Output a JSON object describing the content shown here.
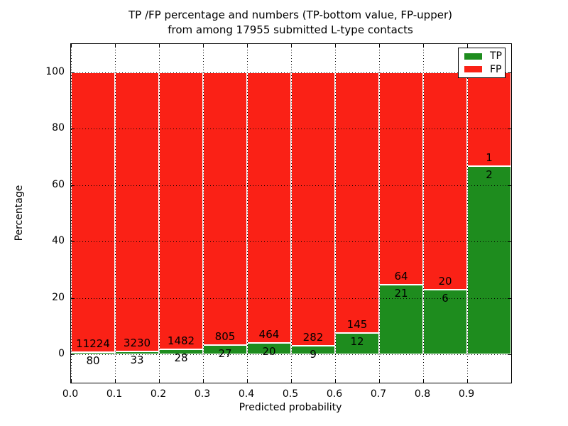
{
  "title": {
    "line1": "TP /FP percentage and numbers (TP-bottom value, FP-upper)",
    "line2": "from among 17955 submitted L-type contacts"
  },
  "chart_data": {
    "type": "bar",
    "stacked": true,
    "normalized_to_percent": true,
    "title": "TP /FP percentage and numbers (TP-bottom value, FP-upper) from among 17955 submitted L-type contacts",
    "xlabel": "Predicted probability",
    "ylabel": "Percentage",
    "xticks": [
      "0.0",
      "0.1",
      "0.2",
      "0.3",
      "0.4",
      "0.5",
      "0.6",
      "0.7",
      "0.8",
      "0.9"
    ],
    "yticks": [
      0,
      20,
      40,
      60,
      80,
      100
    ],
    "xlim": [
      0.0,
      1.0
    ],
    "ylim": [
      -10,
      110
    ],
    "grid": "dotted",
    "legend_position": "upper right",
    "total_contacts": 17955,
    "bar_edge_color": "#ffffff",
    "series": [
      {
        "name": "TP",
        "color": "#1e8c1e"
      },
      {
        "name": "FP",
        "color": "#fa2116"
      }
    ],
    "bins": [
      {
        "x_range": [
          0.0,
          0.1
        ],
        "tp": 80,
        "fp": 11224
      },
      {
        "x_range": [
          0.1,
          0.2
        ],
        "tp": 33,
        "fp": 3230
      },
      {
        "x_range": [
          0.2,
          0.3
        ],
        "tp": 28,
        "fp": 1482
      },
      {
        "x_range": [
          0.3,
          0.4
        ],
        "tp": 27,
        "fp": 805
      },
      {
        "x_range": [
          0.4,
          0.5
        ],
        "tp": 20,
        "fp": 464
      },
      {
        "x_range": [
          0.5,
          0.6
        ],
        "tp": 9,
        "fp": 282
      },
      {
        "x_range": [
          0.6,
          0.7
        ],
        "tp": 12,
        "fp": 145
      },
      {
        "x_range": [
          0.7,
          0.8
        ],
        "tp": 21,
        "fp": 64
      },
      {
        "x_range": [
          0.8,
          0.9
        ],
        "tp": 6,
        "fp": 20
      },
      {
        "x_range": [
          0.9,
          1.0
        ],
        "tp": 2,
        "fp": 1
      }
    ]
  }
}
